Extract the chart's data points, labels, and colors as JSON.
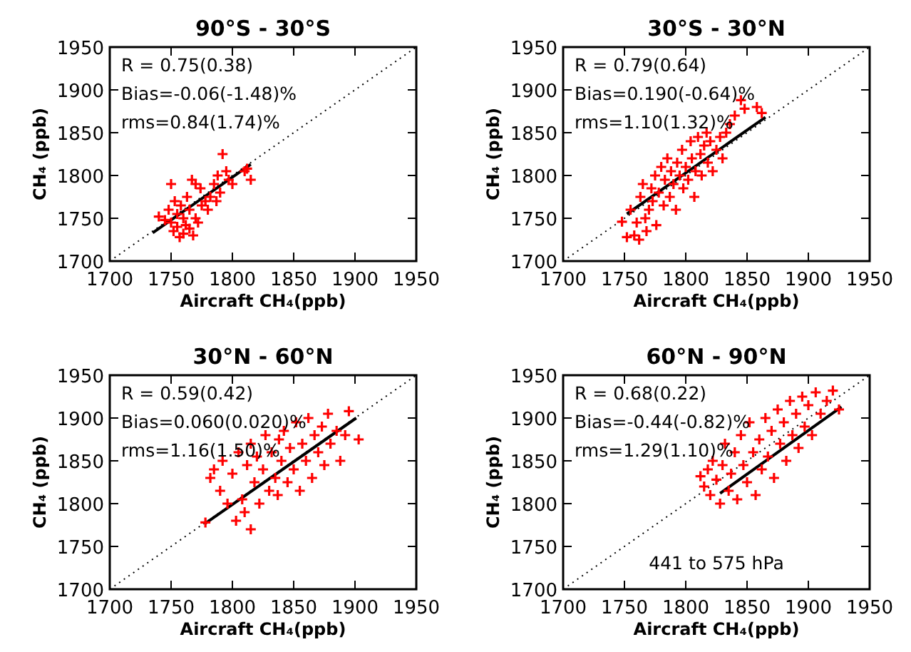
{
  "chart_data": [
    {
      "type": "scatter",
      "title": "90°S - 30°S",
      "xlabel": "Aircraft CH₄(ppb)",
      "ylabel": "CH₄ (ppb)",
      "xlim": [
        1700,
        1950
      ],
      "ylim": [
        1700,
        1950
      ],
      "xticks": [
        1700,
        1750,
        1800,
        1850,
        1900,
        1950
      ],
      "yticks": [
        1700,
        1750,
        1800,
        1850,
        1900,
        1950
      ],
      "grid": false,
      "annotations": [
        "R = 0.75(0.38)",
        "Bias=-0.06(-1.48)%",
        "rms=0.84(1.74)%"
      ],
      "series": [
        {
          "type": "scatter",
          "color": "#ff0000",
          "marker": "cross",
          "x": [
            1740,
            1745,
            1748,
            1750,
            1750,
            1752,
            1753,
            1755,
            1755,
            1757,
            1758,
            1760,
            1760,
            1762,
            1763,
            1765,
            1765,
            1767,
            1768,
            1770,
            1770,
            1772,
            1774,
            1775,
            1778,
            1780,
            1782,
            1785,
            1787,
            1788,
            1790,
            1792,
            1795,
            1797,
            1800,
            1810,
            1812,
            1815
          ],
          "values": [
            1752,
            1748,
            1760,
            1745,
            1790,
            1735,
            1770,
            1740,
            1755,
            1728,
            1765,
            1732,
            1750,
            1742,
            1775,
            1738,
            1760,
            1795,
            1730,
            1750,
            1790,
            1745,
            1785,
            1765,
            1770,
            1760,
            1775,
            1790,
            1770,
            1800,
            1780,
            1825,
            1805,
            1795,
            1790,
            1805,
            1808,
            1795
          ]
        },
        {
          "type": "line",
          "color": "#000000",
          "line_style": "solid",
          "marker": "none",
          "x": [
            1735,
            1815
          ],
          "values": [
            1733,
            1813
          ]
        },
        {
          "type": "line",
          "color": "#000000",
          "line_style": "dotted",
          "marker": "none",
          "x": [
            1700,
            1950
          ],
          "values": [
            1700,
            1950
          ]
        }
      ]
    },
    {
      "type": "scatter",
      "title": "30°S - 30°N",
      "xlabel": "Aircraft CH₄(ppb)",
      "ylabel": "CH₄ (ppb)",
      "xlim": [
        1700,
        1950
      ],
      "ylim": [
        1700,
        1950
      ],
      "xticks": [
        1700,
        1750,
        1800,
        1850,
        1900,
        1950
      ],
      "yticks": [
        1700,
        1750,
        1800,
        1850,
        1900,
        1950
      ],
      "grid": false,
      "annotations": [
        "R = 0.79(0.64)",
        "Bias=0.190(-0.64)%",
        "rms=1.10(1.32)%"
      ],
      "series": [
        {
          "type": "scatter",
          "color": "#ff0000",
          "marker": "cross",
          "x": [
            1748,
            1752,
            1755,
            1758,
            1760,
            1762,
            1763,
            1765,
            1767,
            1768,
            1770,
            1772,
            1773,
            1775,
            1776,
            1778,
            1780,
            1782,
            1783,
            1785,
            1787,
            1788,
            1790,
            1792,
            1793,
            1795,
            1797,
            1798,
            1800,
            1802,
            1804,
            1805,
            1807,
            1808,
            1810,
            1812,
            1813,
            1815,
            1817,
            1818,
            1820,
            1822,
            1825,
            1828,
            1830,
            1833,
            1836,
            1840,
            1845,
            1848,
            1858,
            1862
          ],
          "values": [
            1746,
            1728,
            1760,
            1730,
            1745,
            1725,
            1775,
            1790,
            1750,
            1735,
            1760,
            1785,
            1770,
            1800,
            1742,
            1780,
            1810,
            1765,
            1795,
            1820,
            1775,
            1805,
            1790,
            1760,
            1815,
            1800,
            1830,
            1785,
            1810,
            1795,
            1840,
            1820,
            1775,
            1805,
            1845,
            1825,
            1800,
            1835,
            1850,
            1815,
            1840,
            1805,
            1830,
            1845,
            1820,
            1850,
            1860,
            1870,
            1888,
            1878,
            1880,
            1873
          ]
        },
        {
          "type": "line",
          "color": "#000000",
          "line_style": "solid",
          "marker": "none",
          "x": [
            1752,
            1865
          ],
          "values": [
            1755,
            1868
          ]
        },
        {
          "type": "line",
          "color": "#000000",
          "line_style": "dotted",
          "marker": "none",
          "x": [
            1700,
            1950
          ],
          "values": [
            1700,
            1950
          ]
        }
      ]
    },
    {
      "type": "scatter",
      "title": "30°N - 60°N",
      "xlabel": "Aircraft CH₄(ppb)",
      "ylabel": "CH₄ (ppb)",
      "xlim": [
        1700,
        1950
      ],
      "ylim": [
        1700,
        1950
      ],
      "xticks": [
        1700,
        1750,
        1800,
        1850,
        1900,
        1950
      ],
      "yticks": [
        1700,
        1750,
        1800,
        1850,
        1900,
        1950
      ],
      "grid": false,
      "annotations": [
        "R = 0.59(0.42)",
        "Bias=0.060(0.020)%",
        "rms=1.16(1.50)%"
      ],
      "series": [
        {
          "type": "scatter",
          "color": "#ff0000",
          "marker": "cross",
          "x": [
            1778,
            1782,
            1785,
            1790,
            1792,
            1796,
            1800,
            1803,
            1805,
            1808,
            1810,
            1812,
            1815,
            1815,
            1818,
            1820,
            1822,
            1825,
            1827,
            1830,
            1832,
            1835,
            1837,
            1838,
            1840,
            1842,
            1845,
            1847,
            1850,
            1852,
            1855,
            1857,
            1860,
            1862,
            1865,
            1867,
            1870,
            1873,
            1875,
            1878,
            1880,
            1885,
            1888,
            1892,
            1895,
            1903
          ],
          "values": [
            1778,
            1830,
            1840,
            1815,
            1850,
            1800,
            1835,
            1780,
            1860,
            1805,
            1790,
            1845,
            1770,
            1870,
            1825,
            1855,
            1800,
            1840,
            1880,
            1815,
            1860,
            1830,
            1810,
            1875,
            1850,
            1885,
            1825,
            1865,
            1840,
            1895,
            1815,
            1870,
            1850,
            1900,
            1830,
            1880,
            1860,
            1890,
            1845,
            1905,
            1870,
            1885,
            1850,
            1880,
            1908,
            1875
          ]
        },
        {
          "type": "line",
          "color": "#000000",
          "line_style": "solid",
          "marker": "none",
          "x": [
            1778,
            1901
          ],
          "values": [
            1777,
            1900
          ]
        },
        {
          "type": "line",
          "color": "#000000",
          "line_style": "dotted",
          "marker": "none",
          "x": [
            1700,
            1950
          ],
          "values": [
            1700,
            1950
          ]
        }
      ]
    },
    {
      "type": "scatter",
      "title": "60°N - 90°N",
      "xlabel": "Aircraft CH₄(ppb)",
      "ylabel": "CH₄ (ppb)",
      "xlim": [
        1700,
        1950
      ],
      "ylim": [
        1700,
        1950
      ],
      "xticks": [
        1700,
        1750,
        1800,
        1850,
        1900,
        1950
      ],
      "yticks": [
        1700,
        1750,
        1800,
        1850,
        1900,
        1950
      ],
      "grid": false,
      "annotations": [
        "R = 0.68(0.22)",
        "Bias=-0.44(-0.82)%",
        "rms=1.29(1.10)%",
        "441 to 575 hPa"
      ],
      "series": [
        {
          "type": "scatter",
          "color": "#ff0000",
          "marker": "cross",
          "x": [
            1812,
            1815,
            1818,
            1820,
            1822,
            1825,
            1828,
            1830,
            1832,
            1835,
            1837,
            1840,
            1842,
            1845,
            1847,
            1850,
            1852,
            1855,
            1857,
            1860,
            1862,
            1865,
            1867,
            1870,
            1872,
            1875,
            1877,
            1880,
            1882,
            1885,
            1887,
            1890,
            1892,
            1895,
            1897,
            1900,
            1903,
            1906,
            1910,
            1915,
            1920,
            1925
          ],
          "values": [
            1832,
            1820,
            1840,
            1810,
            1850,
            1828,
            1800,
            1845,
            1870,
            1815,
            1835,
            1860,
            1805,
            1880,
            1845,
            1825,
            1895,
            1860,
            1810,
            1875,
            1840,
            1900,
            1855,
            1885,
            1830,
            1910,
            1870,
            1895,
            1850,
            1920,
            1880,
            1905,
            1865,
            1925,
            1890,
            1915,
            1880,
            1930,
            1905,
            1920,
            1932,
            1910
          ]
        },
        {
          "type": "line",
          "color": "#000000",
          "line_style": "solid",
          "marker": "none",
          "x": [
            1828,
            1927
          ],
          "values": [
            1812,
            1913
          ]
        },
        {
          "type": "line",
          "color": "#000000",
          "line_style": "dotted",
          "marker": "none",
          "x": [
            1700,
            1950
          ],
          "values": [
            1700,
            1950
          ]
        }
      ]
    }
  ]
}
